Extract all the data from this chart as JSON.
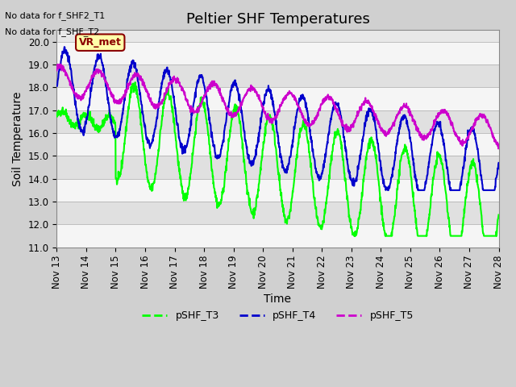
{
  "title": "Peltier SHF Temperatures",
  "xlabel": "Time",
  "ylabel": "Soil Temperature",
  "ylim": [
    11.0,
    20.5
  ],
  "yticks": [
    11.0,
    12.0,
    13.0,
    14.0,
    15.0,
    16.0,
    17.0,
    18.0,
    19.0,
    20.0
  ],
  "text_no_data_1": "No data for f_SHF2_T1",
  "text_no_data_2": "No data for f_SHF_T2",
  "vr_met_label": "VR_met",
  "legend_entries": [
    "pSHF_T3",
    "pSHF_T4",
    "pSHF_T5"
  ],
  "colors": {
    "pSHF_T3": "#00ff00",
    "pSHF_T4": "#0000cc",
    "pSHF_T5": "#cc00cc"
  },
  "xtick_labels": [
    "Nov 13",
    "Nov 14",
    "Nov 15",
    "Nov 16",
    "Nov 17",
    "Nov 18",
    "Nov 19",
    "Nov 20",
    "Nov 21",
    "Nov 22",
    "Nov 23",
    "Nov 24",
    "Nov 25",
    "Nov 26",
    "Nov 27",
    "Nov 28"
  ],
  "title_fontsize": 13,
  "axis_label_fontsize": 10,
  "tick_fontsize": 8.5,
  "legend_fontsize": 9,
  "line_width": 1.5
}
